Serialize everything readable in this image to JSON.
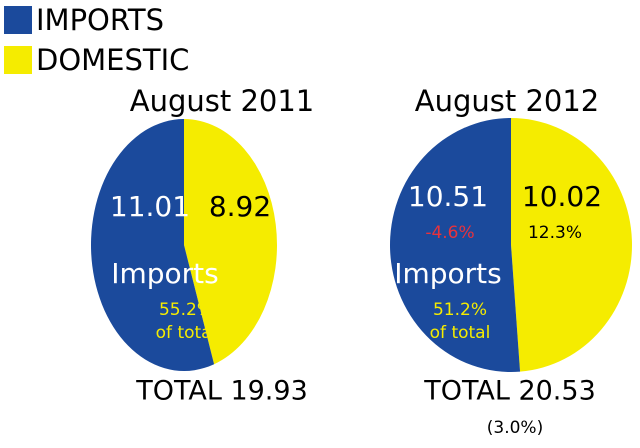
{
  "legend": [
    {
      "name": "IMPORTS",
      "color": "#1b4a9c"
    },
    {
      "name": "DOMESTIC",
      "color": "#f5ec00"
    }
  ],
  "chart_data": [
    {
      "type": "pie",
      "title": "August 2011",
      "values": [
        11.01,
        8.92
      ],
      "label": "Imports",
      "share": "55.2%",
      "share_note": "of total",
      "total": "TOTAL 19.93"
    },
    {
      "type": "pie",
      "title": "August 2012",
      "values": [
        10.51,
        10.02
      ],
      "changes": [
        "-4.6%",
        "12.3%"
      ],
      "label": "Imports",
      "share": "51.2%",
      "share_note": "of total",
      "total": "TOTAL 20.53",
      "total_change": "(3.0%)"
    }
  ]
}
